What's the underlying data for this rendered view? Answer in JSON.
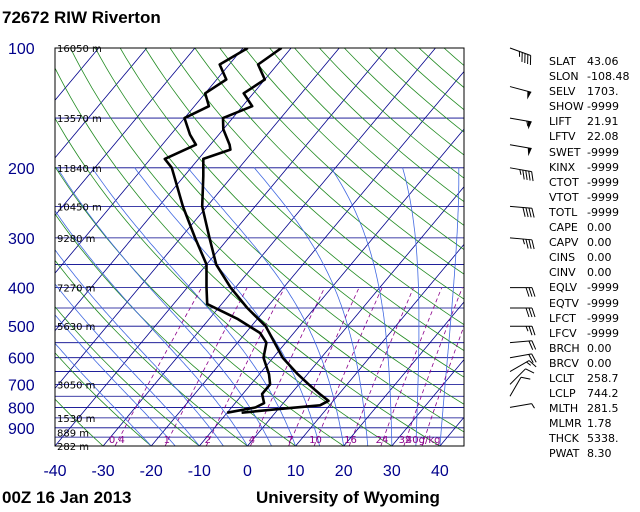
{
  "title": "72672 RIW Riverton",
  "footer": {
    "time": "00Z 16 Jan 2013",
    "source": "University of Wyoming"
  },
  "colors": {
    "isobar": "#00008b",
    "isotherm": "#00008b",
    "dry_adiabat": "#228b22",
    "moist_adiabat": "#4169e1",
    "mixing_ratio": "#8b008b",
    "profile": "#000000",
    "axis_text": "#00008b"
  },
  "chart_data": {
    "type": "line",
    "title": "72672 RIW Riverton",
    "pressure_ticks": [
      100,
      200,
      300,
      400,
      500,
      600,
      700,
      800,
      900
    ],
    "temperature_ticks": [
      -40,
      -30,
      -20,
      -10,
      0,
      10,
      20,
      30,
      40
    ],
    "xlim": [
      -40,
      45
    ],
    "ylim": [
      1000,
      100
    ],
    "y_scale": "log",
    "height_labels": [
      {
        "p": 100,
        "label": "16050 m"
      },
      {
        "p": 150,
        "label": "13570 m"
      },
      {
        "p": 200,
        "label": "11840 m"
      },
      {
        "p": 250,
        "label": "10450 m"
      },
      {
        "p": 300,
        "label": "9280 m"
      },
      {
        "p": 400,
        "label": "7270 m"
      },
      {
        "p": 500,
        "label": "5630 m"
      },
      {
        "p": 700,
        "label": "3050 m"
      },
      {
        "p": 850,
        "label": "1530 m"
      },
      {
        "p": 925,
        "label": "889 m"
      },
      {
        "p": 1000,
        "label": "282 m"
      }
    ],
    "mixing_ratio_labels": [
      "0.4",
      "1",
      "2",
      "4",
      "7",
      "10",
      "16",
      "24",
      "32",
      "40g/kg"
    ],
    "series": [
      {
        "role": "temperature",
        "points": [
          {
            "p": 825,
            "t": -7
          },
          {
            "p": 810,
            "t": -1
          },
          {
            "p": 790,
            "t": 8
          },
          {
            "p": 770,
            "t": 9
          },
          {
            "p": 740,
            "t": 6
          },
          {
            "p": 700,
            "t": 2
          },
          {
            "p": 660,
            "t": -2
          },
          {
            "p": 600,
            "t": -8
          },
          {
            "p": 500,
            "t": -17
          },
          {
            "p": 450,
            "t": -24
          },
          {
            "p": 400,
            "t": -31
          },
          {
            "p": 350,
            "t": -38
          },
          {
            "p": 300,
            "t": -44
          },
          {
            "p": 250,
            "t": -51
          },
          {
            "p": 210,
            "t": -56
          },
          {
            "p": 190,
            "t": -59
          },
          {
            "p": 180,
            "t": -55
          },
          {
            "p": 175,
            "t": -56
          },
          {
            "p": 160,
            "t": -60
          },
          {
            "p": 150,
            "t": -62
          },
          {
            "p": 140,
            "t": -58
          },
          {
            "p": 130,
            "t": -62
          },
          {
            "p": 120,
            "t": -60
          },
          {
            "p": 110,
            "t": -64
          },
          {
            "p": 100,
            "t": -62
          }
        ]
      },
      {
        "role": "dewpoint",
        "points": [
          {
            "p": 825,
            "t": -10
          },
          {
            "p": 800,
            "t": -5
          },
          {
            "p": 780,
            "t": -4
          },
          {
            "p": 740,
            "t": -6
          },
          {
            "p": 700,
            "t": -6
          },
          {
            "p": 660,
            "t": -8
          },
          {
            "p": 600,
            "t": -12
          },
          {
            "p": 550,
            "t": -14
          },
          {
            "p": 520,
            "t": -17
          },
          {
            "p": 480,
            "t": -24
          },
          {
            "p": 440,
            "t": -33
          },
          {
            "p": 400,
            "t": -36
          },
          {
            "p": 350,
            "t": -40
          },
          {
            "p": 300,
            "t": -47
          },
          {
            "p": 250,
            "t": -55
          },
          {
            "p": 200,
            "t": -64
          },
          {
            "p": 190,
            "t": -67
          },
          {
            "p": 175,
            "t": -63
          },
          {
            "p": 165,
            "t": -66
          },
          {
            "p": 150,
            "t": -70
          },
          {
            "p": 140,
            "t": -67
          },
          {
            "p": 130,
            "t": -70
          },
          {
            "p": 120,
            "t": -68
          },
          {
            "p": 110,
            "t": -72
          },
          {
            "p": 100,
            "t": -69
          }
        ]
      }
    ],
    "wind_barbs": [
      {
        "p": 100,
        "dir": 290,
        "spd": 45
      },
      {
        "p": 125,
        "dir": 285,
        "spd": 50
      },
      {
        "p": 150,
        "dir": 280,
        "spd": 55
      },
      {
        "p": 175,
        "dir": 280,
        "spd": 50
      },
      {
        "p": 200,
        "dir": 280,
        "spd": 45
      },
      {
        "p": 250,
        "dir": 275,
        "spd": 40
      },
      {
        "p": 300,
        "dir": 275,
        "spd": 35
      },
      {
        "p": 400,
        "dir": 270,
        "spd": 30
      },
      {
        "p": 450,
        "dir": 270,
        "spd": 30
      },
      {
        "p": 500,
        "dir": 270,
        "spd": 25
      },
      {
        "p": 550,
        "dir": 265,
        "spd": 20
      },
      {
        "p": 600,
        "dir": 260,
        "spd": 20
      },
      {
        "p": 650,
        "dir": 240,
        "spd": 15
      },
      {
        "p": 700,
        "dir": 225,
        "spd": 10
      },
      {
        "p": 750,
        "dir": 210,
        "spd": 10
      },
      {
        "p": 800,
        "dir": 260,
        "spd": 5
      }
    ]
  },
  "indices": [
    {
      "name": "SLAT",
      "value": "43.06"
    },
    {
      "name": "SLON",
      "value": "-108.48"
    },
    {
      "name": "SELV",
      "value": "1703."
    },
    {
      "name": "SHOW",
      "value": "-9999"
    },
    {
      "name": "LIFT",
      "value": "21.91"
    },
    {
      "name": "LFTV",
      "value": "22.08"
    },
    {
      "name": "SWET",
      "value": "-9999"
    },
    {
      "name": "KINX",
      "value": "-9999"
    },
    {
      "name": "CTOT",
      "value": "-9999"
    },
    {
      "name": "VTOT",
      "value": "-9999"
    },
    {
      "name": "TOTL",
      "value": "-9999"
    },
    {
      "name": "CAPE",
      "value": "0.00"
    },
    {
      "name": "CAPV",
      "value": "0.00"
    },
    {
      "name": "CINS",
      "value": "0.00"
    },
    {
      "name": "CINV",
      "value": "0.00"
    },
    {
      "name": "EQLV",
      "value": "-9999"
    },
    {
      "name": "EQTV",
      "value": "-9999"
    },
    {
      "name": "LFCT",
      "value": "-9999"
    },
    {
      "name": "LFCV",
      "value": "-9999"
    },
    {
      "name": "BRCH",
      "value": "0.00"
    },
    {
      "name": "BRCV",
      "value": "0.00"
    },
    {
      "name": "LCLT",
      "value": "258.7"
    },
    {
      "name": "LCLP",
      "value": "744.2"
    },
    {
      "name": "MLTH",
      "value": "281.5"
    },
    {
      "name": "MLMR",
      "value": "1.78"
    },
    {
      "name": "THCK",
      "value": "5338."
    },
    {
      "name": "PWAT",
      "value": "8.30"
    }
  ]
}
